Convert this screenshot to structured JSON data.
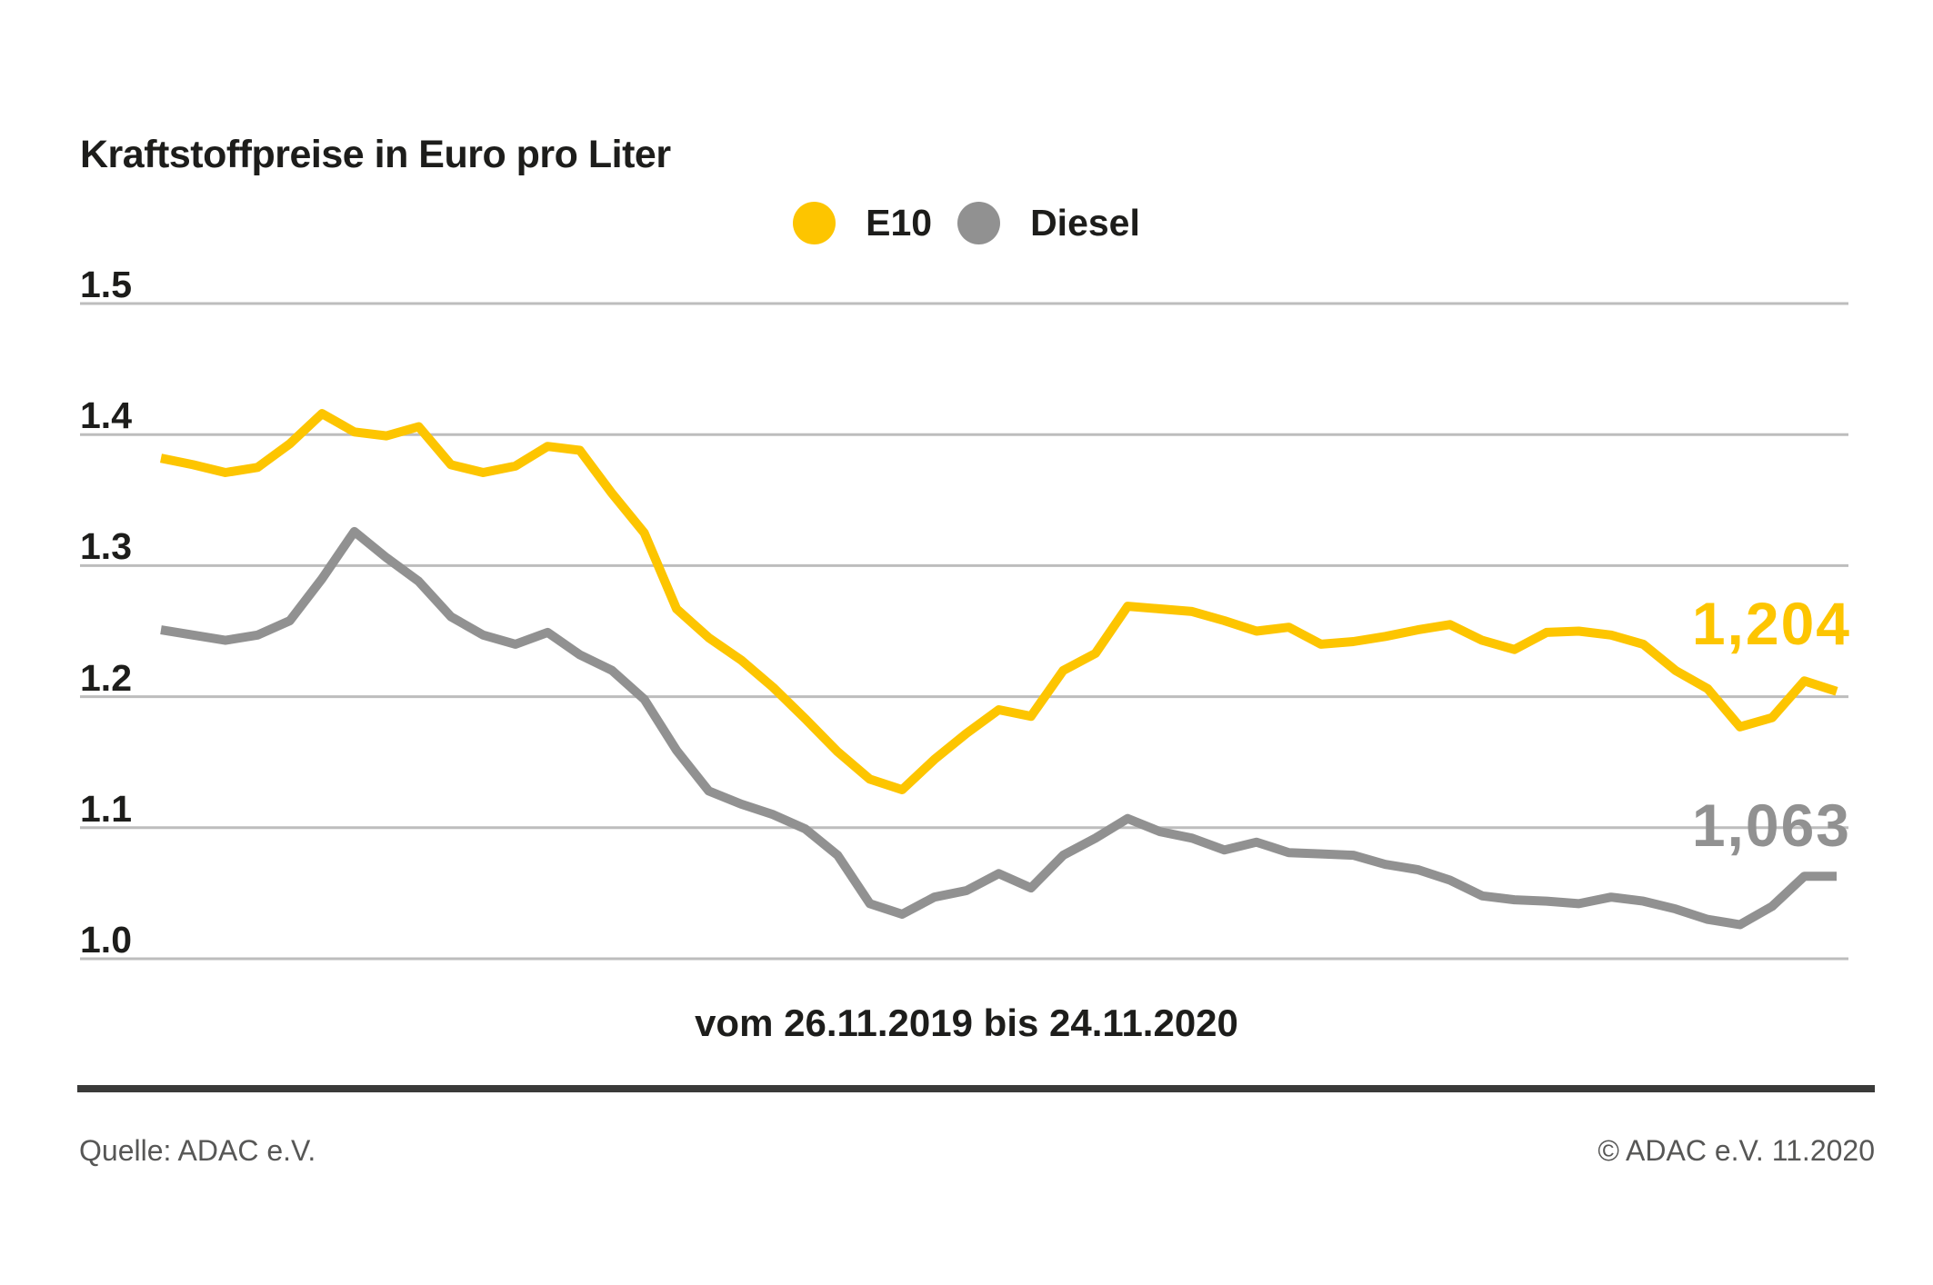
{
  "title": "Kraftstoffpreise in Euro pro Liter",
  "footer": {
    "source": "Quelle: ADAC e.V.",
    "copyright": "© ADAC e.V. 11.2020"
  },
  "colors": {
    "e10_yellow": "#fdc500",
    "diesel_gray": "#919191",
    "text_primary": "#1d1d1b",
    "text_secondary": "#575756",
    "gridline": "#bdbdbd",
    "divider": "#3a3a39",
    "background": "#ffffff"
  },
  "chart_data": {
    "type": "line",
    "title": "Kraftstoffpreise in Euro pro Liter",
    "x_label": "vom 26.11.2019 bis 24.11.2020",
    "x_start": "26.11.2019",
    "x_end": "24.11.2020",
    "x_interval": "weekly",
    "ylabel": "Euro pro Liter",
    "ylim": [
      1.0,
      1.5
    ],
    "y_ticks": [
      "1.5",
      "1.4",
      "1.3",
      "1.2",
      "1.1",
      "1.0"
    ],
    "grid": true,
    "legend_position": "top-center",
    "series": [
      {
        "name": "E10",
        "color": "#fdc500",
        "end_label": "1,204",
        "final_value": 1.204,
        "values": [
          1.382,
          1.377,
          1.371,
          1.375,
          1.393,
          1.416,
          1.402,
          1.399,
          1.406,
          1.377,
          1.371,
          1.376,
          1.391,
          1.388,
          1.355,
          1.325,
          1.267,
          1.245,
          1.228,
          1.207,
          1.183,
          1.158,
          1.137,
          1.129,
          1.152,
          1.172,
          1.19,
          1.185,
          1.22,
          1.233,
          1.269,
          1.267,
          1.265,
          1.258,
          1.25,
          1.253,
          1.24,
          1.242,
          1.246,
          1.251,
          1.255,
          1.243,
          1.236,
          1.249,
          1.25,
          1.247,
          1.24,
          1.22,
          1.206,
          1.177,
          1.184,
          1.212,
          1.204
        ]
      },
      {
        "name": "Diesel",
        "color": "#919191",
        "end_label": "1,063",
        "final_value": 1.063,
        "values": [
          1.251,
          1.247,
          1.243,
          1.247,
          1.258,
          1.29,
          1.326,
          1.306,
          1.288,
          1.261,
          1.247,
          1.24,
          1.249,
          1.232,
          1.22,
          1.198,
          1.159,
          1.128,
          1.118,
          1.11,
          1.099,
          1.079,
          1.042,
          1.034,
          1.047,
          1.052,
          1.065,
          1.054,
          1.079,
          1.092,
          1.107,
          1.097,
          1.092,
          1.083,
          1.089,
          1.081,
          1.08,
          1.079,
          1.072,
          1.068,
          1.06,
          1.048,
          1.045,
          1.044,
          1.042,
          1.047,
          1.044,
          1.038,
          1.03,
          1.026,
          1.04,
          1.063,
          1.063
        ]
      }
    ]
  }
}
